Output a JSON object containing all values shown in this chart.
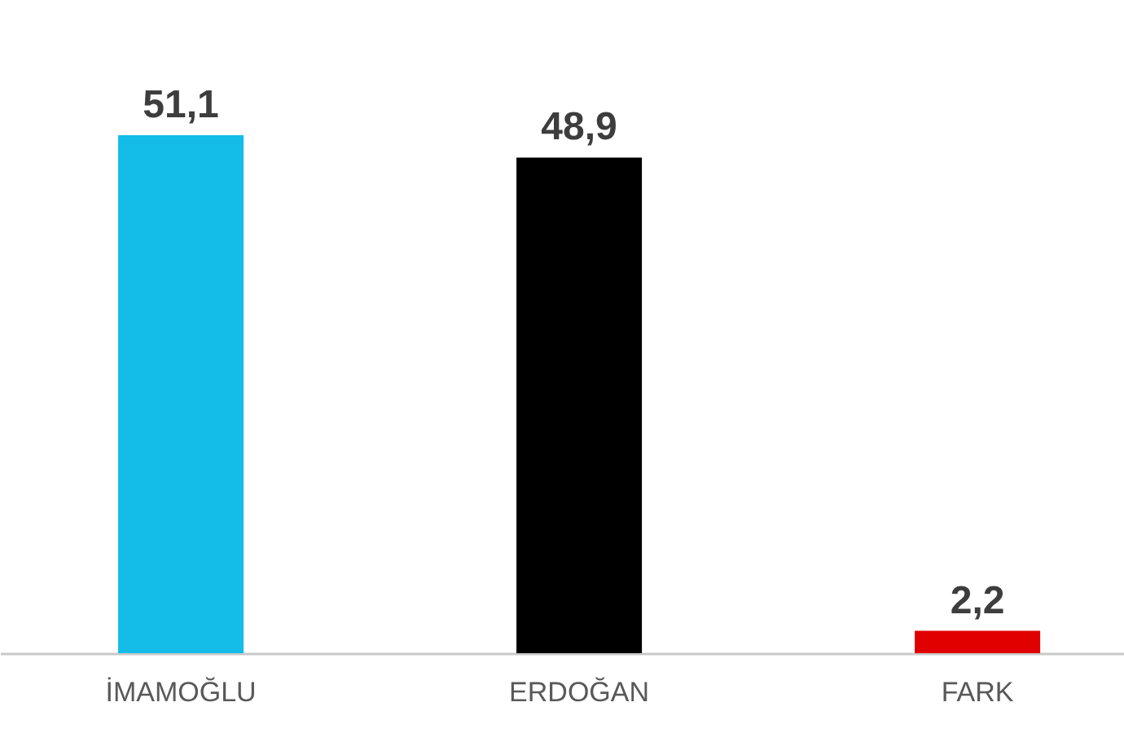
{
  "chart_data": {
    "type": "bar",
    "categories": [
      "İMAMOĞLU",
      "ERDOĞAN",
      "FARK"
    ],
    "values": [
      51.1,
      48.9,
      2.2
    ],
    "colors": [
      "#13bde8",
      "#000000",
      "#e00000"
    ],
    "value_labels": [
      "51,1",
      "48,9",
      "2,2"
    ]
  }
}
